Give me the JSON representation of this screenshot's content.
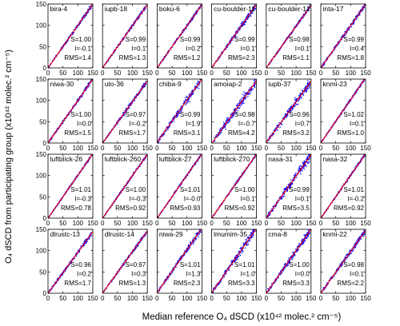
{
  "chart_data": {
    "type": "scatter",
    "xlabel": "Median reference O₄ dSCD (x10⁴² molec.² cm⁻⁵)",
    "ylabel": "O₄ dSCD from participating group (x10⁴² molec.² cm⁻⁵)",
    "xlim": [
      0,
      150
    ],
    "ylim": [
      0,
      150
    ],
    "xticks": [
      0,
      50,
      100,
      150
    ],
    "yticks": [
      0,
      50,
      100,
      150
    ],
    "grid": false,
    "point_color": "#0000ff",
    "line_color": "#ff0000",
    "panels": [
      {
        "name": "bira-4",
        "S": "S=1.00",
        "I": "I=-0.1",
        "RMS": "RMS=1.4",
        "slope": 1.0,
        "intercept": -0.1,
        "rms": 1.4
      },
      {
        "name": "iupb-18",
        "S": "S=0.99",
        "I": "I=0.1",
        "RMS": "RMS=1.3",
        "slope": 0.99,
        "intercept": 0.1,
        "rms": 1.3
      },
      {
        "name": "boku-6",
        "S": "S=0.99",
        "I": "I=0.2",
        "RMS": "RMS=1.2",
        "slope": 0.99,
        "intercept": 0.2,
        "rms": 1.2
      },
      {
        "name": "cu-boulder-11",
        "S": "S=0.99",
        "I": "I=0.1",
        "RMS": "RMS=2.3",
        "slope": 0.99,
        "intercept": 0.1,
        "rms": 2.3
      },
      {
        "name": "cu-boulder-12",
        "S": "S=0.98",
        "I": "I=0.1",
        "RMS": "RMS=1.1",
        "slope": 0.98,
        "intercept": 0.1,
        "rms": 1.1
      },
      {
        "name": "inta-17",
        "S": "S=0.99",
        "I": "I=0.4",
        "RMS": "RMS=1.8",
        "slope": 0.99,
        "intercept": 0.4,
        "rms": 1.8
      },
      {
        "name": "niwa-30",
        "S": "S=1.00",
        "I": "I=0.0",
        "RMS": "RMS=1.5",
        "slope": 1.0,
        "intercept": 0.0,
        "rms": 1.5
      },
      {
        "name": "uto-36",
        "S": "S=0.97",
        "I": "I=-0.2",
        "RMS": "RMS=1.7",
        "slope": 0.97,
        "intercept": -0.2,
        "rms": 1.7
      },
      {
        "name": "chiba-9",
        "S": "S=0.99",
        "I": "I=1.9",
        "RMS": "RMS=3.1",
        "slope": 0.99,
        "intercept": 1.9,
        "rms": 3.1
      },
      {
        "name": "amoiap-2",
        "S": "S=0.98",
        "I": "I=-0.7",
        "RMS": "RMS=4.2",
        "slope": 0.98,
        "intercept": -0.7,
        "rms": 4.2
      },
      {
        "name": "iupb-37",
        "S": "S=0.96",
        "I": "I=0.7",
        "RMS": "RMS=3.2",
        "slope": 0.96,
        "intercept": 0.7,
        "rms": 3.2
      },
      {
        "name": "knmi-23",
        "S": "S=1.02",
        "I": "I=0.1",
        "RMS": "RMS=1.0",
        "slope": 1.02,
        "intercept": 0.1,
        "rms": 1.0
      },
      {
        "name": "luftblick-26",
        "S": "S=1.01",
        "I": "I=-0.3",
        "RMS": "RMS=0.78",
        "slope": 1.01,
        "intercept": -0.3,
        "rms": 0.78
      },
      {
        "name": "luftblick-260",
        "S": "S=1.00",
        "I": "I=-0.3",
        "RMS": "RMS=0.92",
        "slope": 1.0,
        "intercept": -0.3,
        "rms": 0.92
      },
      {
        "name": "luftblick-27",
        "S": "S=1.01",
        "I": "I=-0.0",
        "RMS": "RMS=0.93",
        "slope": 1.01,
        "intercept": -0.0,
        "rms": 0.93
      },
      {
        "name": "luftblick-270",
        "S": "S=1.00",
        "I": "I=0.1",
        "RMS": "RMS=0.92",
        "slope": 1.0,
        "intercept": 0.1,
        "rms": 0.92
      },
      {
        "name": "nasa-31",
        "S": "S=0.99",
        "I": "I=0.1",
        "RMS": "RMS=3.5",
        "slope": 0.99,
        "intercept": 0.1,
        "rms": 3.5
      },
      {
        "name": "nasa-32",
        "S": "S=1.01",
        "I": "I=-0.2",
        "RMS": "RMS=0.92",
        "slope": 1.01,
        "intercept": -0.2,
        "rms": 0.92
      },
      {
        "name": "dlrustc-13",
        "S": "S=0.96",
        "I": "I=0.2",
        "RMS": "RMS=1.7",
        "slope": 0.96,
        "intercept": 0.2,
        "rms": 1.7
      },
      {
        "name": "dlrustc-14",
        "S": "S=0.97",
        "I": "I=0.3",
        "RMS": "RMS=1.3",
        "slope": 0.97,
        "intercept": 0.3,
        "rms": 1.3
      },
      {
        "name": "niwa-29",
        "S": "S=1.01",
        "I": "I=1.3",
        "RMS": "RMS=2.3",
        "slope": 1.01,
        "intercept": 1.3,
        "rms": 2.3
      },
      {
        "name": "lmumim-35",
        "S": "S=1.01",
        "I": "I=1.0",
        "RMS": "RMS=3.3",
        "slope": 1.01,
        "intercept": 1.0,
        "rms": 3.3
      },
      {
        "name": "cma-8",
        "S": "S=1.00",
        "I": "I=0.0",
        "RMS": "RMS=3.3",
        "slope": 1.0,
        "intercept": 0.0,
        "rms": 3.3
      },
      {
        "name": "knmi-22",
        "S": "S=0.98",
        "I": "I=0.1",
        "RMS": "RMS=2.2",
        "slope": 0.98,
        "intercept": 0.1,
        "rms": 2.2
      }
    ]
  }
}
